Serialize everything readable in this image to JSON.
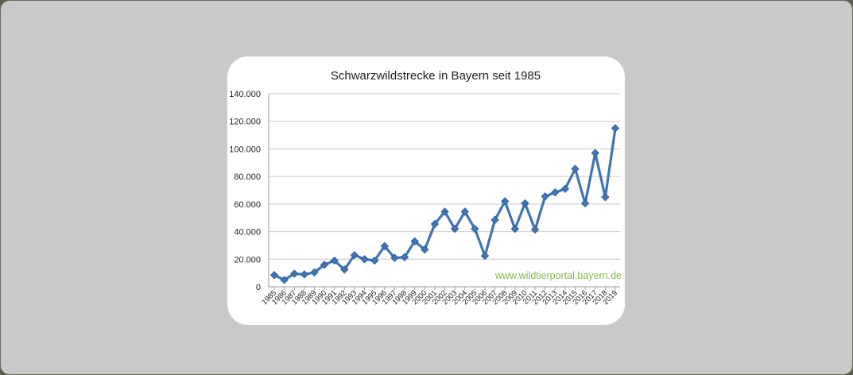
{
  "chart_data": {
    "type": "line",
    "title": "Schwarzwildstrecke in Bayern seit 1985",
    "xlabel": "",
    "ylabel": "",
    "ylim": [
      0,
      140000
    ],
    "yticks": [
      0,
      20000,
      40000,
      60000,
      80000,
      100000,
      120000,
      140000
    ],
    "ytick_labels": [
      "0",
      "20.000",
      "40.000",
      "60.000",
      "80.000",
      "100.000",
      "120.000",
      "140.000"
    ],
    "categories": [
      "1985",
      "1986",
      "1987",
      "1988",
      "1989",
      "1990",
      "1991",
      "1992",
      "1993",
      "1994",
      "1995",
      "1996",
      "1997",
      "1998",
      "1999",
      "2000",
      "2001",
      "2002",
      "2003",
      "2004",
      "2005",
      "2006",
      "2007",
      "2008",
      "2009",
      "2010",
      "2011",
      "2012",
      "2013",
      "2014",
      "2015",
      "2016",
      "2017",
      "2018",
      "2019"
    ],
    "values": [
      8500,
      5000,
      9500,
      9000,
      10500,
      16000,
      19000,
      12500,
      23000,
      20000,
      19000,
      29500,
      21000,
      21500,
      33000,
      27000,
      45500,
      54500,
      42000,
      54500,
      42000,
      22500,
      48500,
      62000,
      42000,
      60500,
      41500,
      65500,
      68500,
      71000,
      85500,
      60500,
      97000,
      65000,
      115000
    ],
    "grid": true,
    "line_color": "#3f74b5",
    "marker": "diamond",
    "annotation": "www.wildtierportal.bayern.de",
    "annotation_color": "#86b94a"
  }
}
